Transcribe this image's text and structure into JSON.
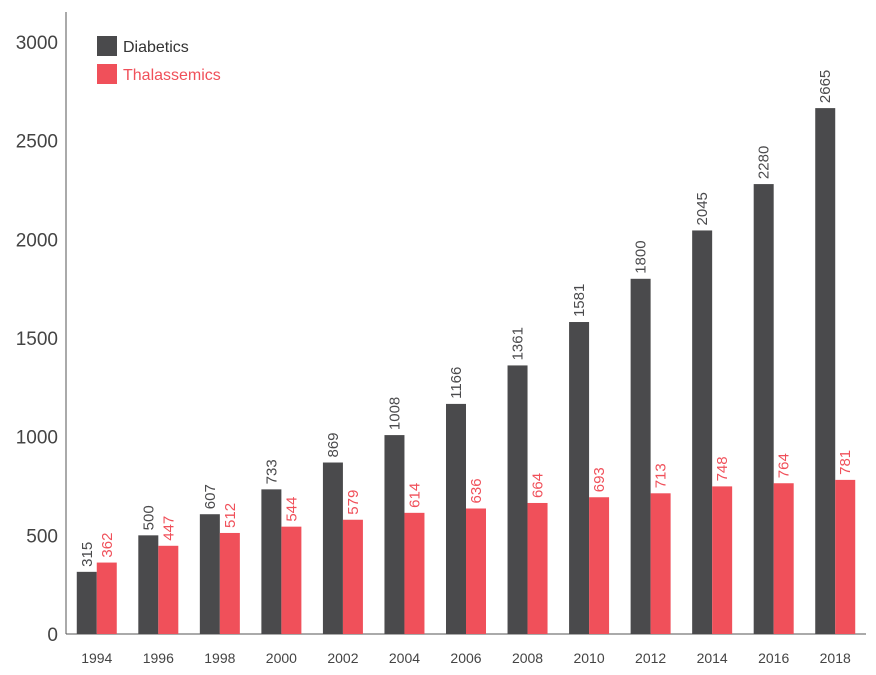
{
  "chart_data": {
    "type": "bar",
    "categories": [
      "1994",
      "1996",
      "1998",
      "2000",
      "2002",
      "2004",
      "2006",
      "2008",
      "2010",
      "2012",
      "2014",
      "2016",
      "2018"
    ],
    "series": [
      {
        "name": "Diabetics",
        "color": "#4a4a4c",
        "values": [
          315,
          500,
          607,
          733,
          869,
          1008,
          1166,
          1361,
          1581,
          1800,
          2045,
          2280,
          2665
        ]
      },
      {
        "name": "Thalassemics",
        "color": "#f0505a",
        "values": [
          362,
          447,
          512,
          544,
          579,
          614,
          636,
          664,
          693,
          713,
          748,
          764,
          781
        ]
      }
    ],
    "y_ticks": [
      0,
      500,
      1000,
      1500,
      2000,
      2500,
      3000
    ],
    "ylim": [
      0,
      3000
    ],
    "xlabel": "",
    "ylabel": "",
    "title": "",
    "grid": false,
    "legend_position": "top-left",
    "data_labels": true
  }
}
